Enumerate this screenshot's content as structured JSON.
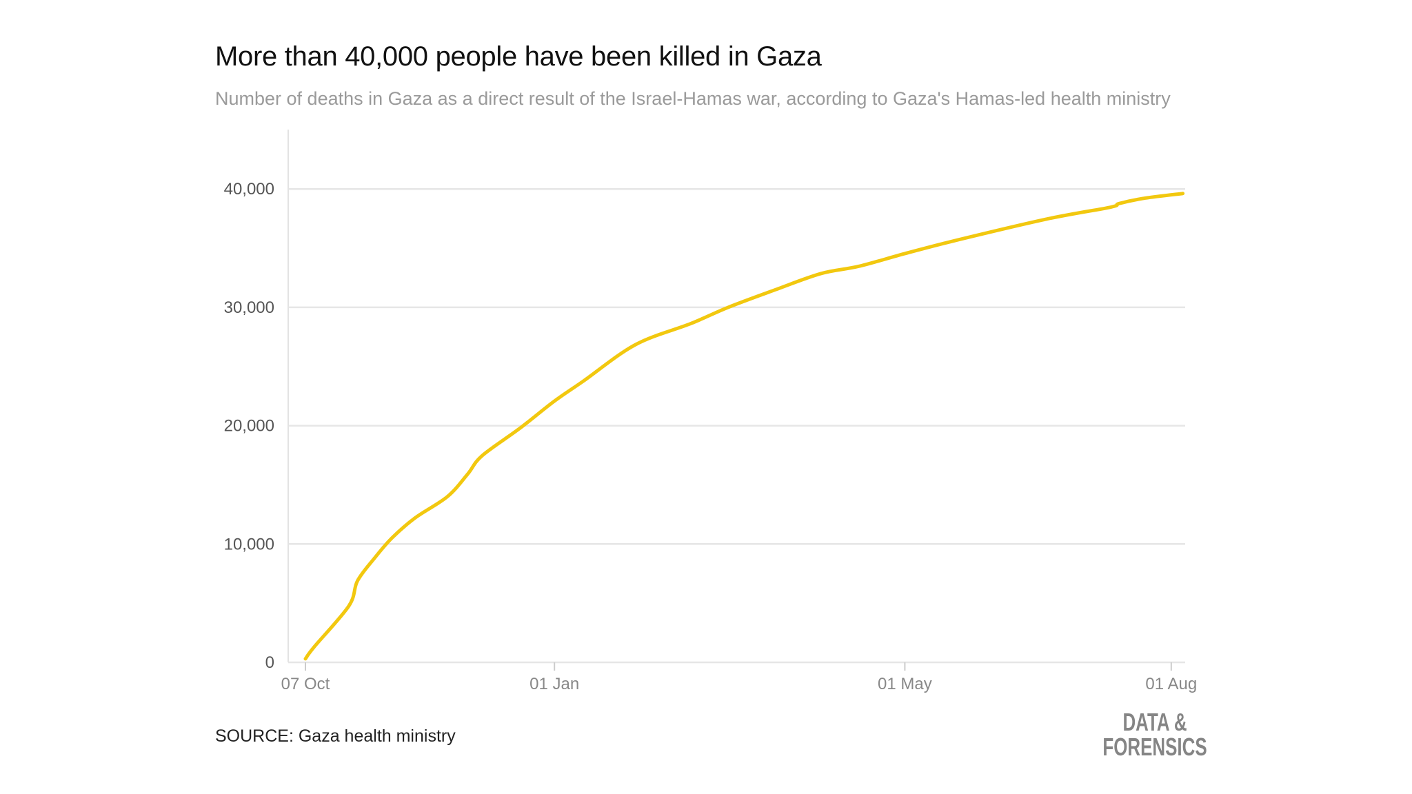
{
  "chart_data": {
    "type": "line",
    "title": "More than 40,000 people have been killed in Gaza",
    "subtitle": "Number of deaths in Gaza as a direct result of the Israel-Hamas war, according to Gaza's Hamas-led health ministry",
    "xlabel": "",
    "ylabel": "",
    "ylim": [
      0,
      45000
    ],
    "xlim": [
      "2023-10-04",
      "2024-08-06"
    ],
    "grid": true,
    "y_ticks": [
      {
        "value": 0,
        "label": "0"
      },
      {
        "value": 10000,
        "label": "10,000"
      },
      {
        "value": 20000,
        "label": "20,000"
      },
      {
        "value": 30000,
        "label": "30,000"
      },
      {
        "value": 40000,
        "label": "40,000"
      }
    ],
    "x_ticks": [
      {
        "value": "2023-10-07",
        "label": "07 Oct"
      },
      {
        "value": "2024-01-01",
        "label": "01 Jan"
      },
      {
        "value": "2024-05-01",
        "label": "01 May"
      },
      {
        "value": "2024-08-01",
        "label": "01 Aug"
      }
    ],
    "line_color": "#f2c80f",
    "series": [
      {
        "x": [
          "2023-10-07",
          "2023-10-10",
          "2023-10-22",
          "2023-10-25",
          "2023-10-31",
          "2023-11-06",
          "2023-11-14",
          "2023-11-25",
          "2023-12-02",
          "2023-12-07",
          "2023-12-20",
          "2024-01-01",
          "2024-01-11",
          "2024-01-29",
          "2024-02-17",
          "2024-03-01",
          "2024-03-17",
          "2024-04-02",
          "2024-04-15",
          "2024-05-01",
          "2024-05-18",
          "2024-06-19",
          "2024-07-11",
          "2024-07-14",
          "2024-07-23",
          "2024-08-05"
        ],
        "y": [
          300,
          1300,
          4770,
          6900,
          8850,
          10540,
          12230,
          14000,
          15900,
          17460,
          19770,
          22080,
          23770,
          26850,
          28620,
          30000,
          31460,
          32850,
          33460,
          34540,
          35620,
          37460,
          38460,
          38770,
          39230,
          39620
        ]
      }
    ]
  },
  "source": "SOURCE: Gaza health ministry",
  "logo": {
    "line1": "DATA &",
    "line2": "FORENSICS"
  }
}
